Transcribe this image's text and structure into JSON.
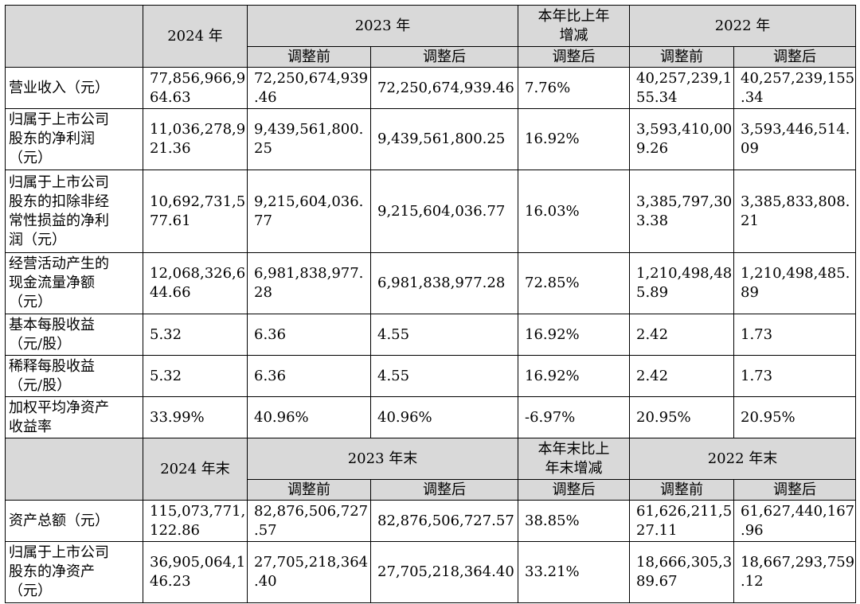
{
  "header1": {
    "y2024": "2024 年",
    "y2023": "2023 年",
    "yoy": [
      "本年比上年",
      "增减"
    ],
    "y2022": "2022 年",
    "before": "调整前",
    "after": "调整后",
    "after_yoy": "调整后",
    "before_2022": "调整前",
    "after_2022": "调整后"
  },
  "rows1": [
    {
      "label": [
        "营业收入（元）"
      ],
      "v2024": [
        "77,856,966,9",
        "64.63"
      ],
      "v2023b": [
        "72,250,674,939",
        ".46"
      ],
      "v2023a": "72,250,674,939.46",
      "yoy": "7.76%",
      "v2022b": [
        "40,257,239,1",
        "55.34"
      ],
      "v2022a": [
        "40,257,239,155",
        ".34"
      ]
    },
    {
      "label": [
        "归属于上市公司",
        "股东的净利润",
        "（元）"
      ],
      "v2024": [
        "11,036,278,9",
        "21.36"
      ],
      "v2023b": [
        "9,439,561,800.",
        "25"
      ],
      "v2023a": "9,439,561,800.25",
      "yoy": "16.92%",
      "v2022b": [
        "3,593,410,00",
        "9.26"
      ],
      "v2022a": [
        "3,593,446,514.",
        "09"
      ]
    },
    {
      "label": [
        "归属于上市公司",
        "股东的扣除非经",
        "常性损益的净利",
        "润（元）"
      ],
      "v2024": [
        "10,692,731,5",
        "77.61"
      ],
      "v2023b": [
        "9,215,604,036.",
        "77"
      ],
      "v2023a": "9,215,604,036.77",
      "yoy": "16.03%",
      "v2022b": [
        "3,385,797,30",
        "3.38"
      ],
      "v2022a": [
        "3,385,833,808.",
        "21"
      ]
    },
    {
      "label": [
        "经营活动产生的",
        "现金流量净额",
        "（元）"
      ],
      "v2024": [
        "12,068,326,6",
        "44.66"
      ],
      "v2023b": [
        "6,981,838,977.",
        "28"
      ],
      "v2023a": "6,981,838,977.28",
      "yoy": "72.85%",
      "v2022b": [
        "1,210,498,48",
        "5.89"
      ],
      "v2022a": [
        "1,210,498,485.",
        "89"
      ]
    },
    {
      "label": [
        "基本每股收益",
        "（元/股）"
      ],
      "v2024": [
        "5.32"
      ],
      "v2023b": [
        "6.36"
      ],
      "v2023a": "4.55",
      "yoy": "16.92%",
      "v2022b": [
        "2.42"
      ],
      "v2022a": [
        "1.73"
      ]
    },
    {
      "label": [
        "稀释每股收益",
        "（元/股）"
      ],
      "v2024": [
        "5.32"
      ],
      "v2023b": [
        "6.36"
      ],
      "v2023a": "4.55",
      "yoy": "16.92%",
      "v2022b": [
        "2.42"
      ],
      "v2022a": [
        "1.73"
      ]
    },
    {
      "label": [
        "加权平均净资产",
        "收益率"
      ],
      "v2024": [
        "33.99%"
      ],
      "v2023b": [
        "40.96%"
      ],
      "v2023a": "40.96%",
      "yoy": "-6.97%",
      "v2022b": [
        "20.95%"
      ],
      "v2022a": [
        "20.95%"
      ]
    }
  ],
  "header2": {
    "y2024": "2024 年末",
    "y2023": "2023 年末",
    "yoy": [
      "本年末比上",
      "年末增减"
    ],
    "y2022": "2022 年末",
    "before": "调整前",
    "after": "调整后",
    "after_yoy": "调整后",
    "before_2022": "调整前",
    "after_2022": "调整后"
  },
  "rows2": [
    {
      "label": [
        "资产总额（元）"
      ],
      "v2024": [
        "115,073,771,",
        "122.86"
      ],
      "v2023b": [
        "82,876,506,727",
        ".57"
      ],
      "v2023a": "82,876,506,727.57",
      "yoy": "38.85%",
      "v2022b": [
        "61,626,211,5",
        "27.11"
      ],
      "v2022a": [
        "61,627,440,167",
        ".96"
      ]
    },
    {
      "label": [
        "归属于上市公司",
        "股东的净资产",
        "（元）"
      ],
      "v2024": [
        "36,905,064,1",
        "46.23"
      ],
      "v2023b": [
        "27,705,218,364",
        ".40"
      ],
      "v2023a": "27,705,218,364.40",
      "yoy": "33.21%",
      "v2022b": [
        "18,666,305,3",
        "89.67"
      ],
      "v2022a": [
        "18,667,293,759",
        ".12"
      ]
    }
  ]
}
